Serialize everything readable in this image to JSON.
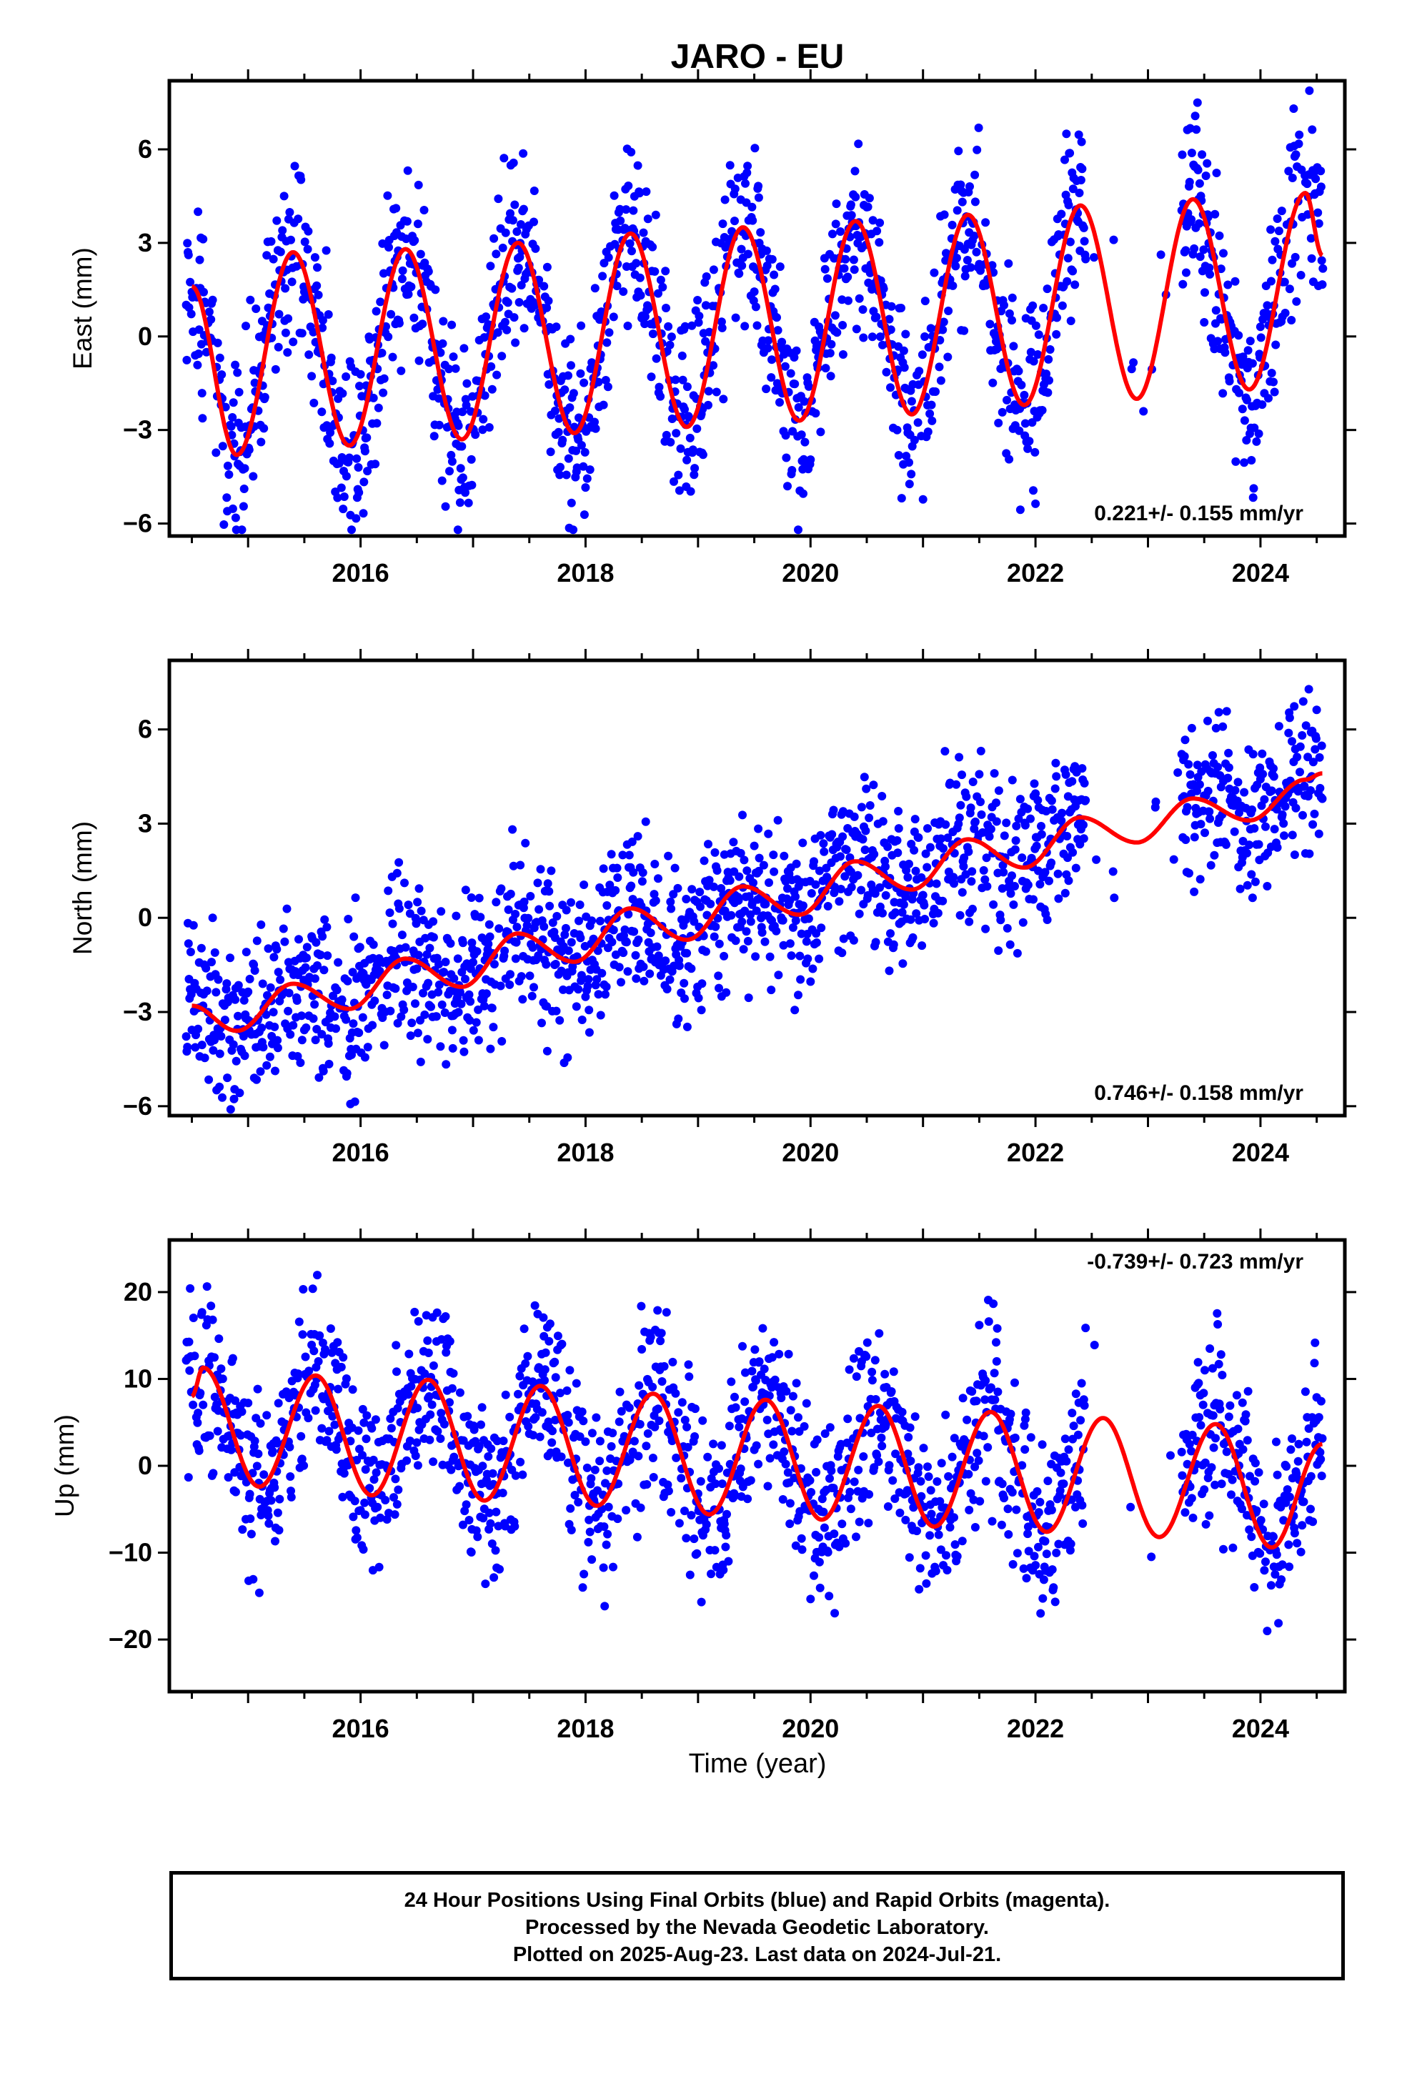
{
  "title": "JARO - EU",
  "xlabel": "Time (year)",
  "colors": {
    "points": "#0000ff",
    "fit": "#ff0000",
    "frame": "#000000"
  },
  "footer": {
    "line1": "24 Hour Positions Using Final Orbits (blue) and Rapid Orbits (magenta).",
    "line2": "Processed by the Nevada Geodetic Laboratory.",
    "line3": "Plotted on 2025-Aug-23. Last data on 2024-Jul-21."
  },
  "chart_data": [
    {
      "type": "scatter",
      "ylabel": "East (mm)",
      "rate": "0.221+/- 0.155 mm/yr",
      "rate_position": "bottom-right",
      "xlim": [
        2014.3,
        2024.75
      ],
      "ylim": [
        -6.4,
        8.2
      ],
      "yticks": [
        -6,
        -3,
        0,
        3,
        6
      ],
      "xticks": [
        2016,
        2018,
        2020,
        2022,
        2024
      ],
      "grid": false,
      "fit": {
        "x": [
          2014.5,
          2014.9,
          2015.4,
          2015.9,
          2016.4,
          2016.9,
          2017.4,
          2017.9,
          2018.4,
          2018.9,
          2019.4,
          2019.9,
          2020.4,
          2020.9,
          2021.4,
          2021.9,
          2022.4,
          2022.9,
          2023.4,
          2023.9,
          2024.4,
          2024.55
        ],
        "y": [
          1.6,
          -3.8,
          2.7,
          -3.5,
          2.8,
          -3.3,
          3.0,
          -3.1,
          3.3,
          -2.9,
          3.5,
          -2.7,
          3.7,
          -2.5,
          3.9,
          -2.2,
          4.2,
          -2.0,
          4.4,
          -1.7,
          4.6,
          2.6
        ]
      },
      "points_summary": "daily positions scattered about +/-1.5 mm around the fit, gap 2022.45-2023.3"
    },
    {
      "type": "scatter",
      "ylabel": "North (mm)",
      "rate": "0.746+/- 0.158 mm/yr",
      "rate_position": "bottom-right",
      "xlim": [
        2014.3,
        2024.75
      ],
      "ylim": [
        -6.3,
        8.2
      ],
      "yticks": [
        -6,
        -3,
        0,
        3,
        6
      ],
      "xticks": [
        2016,
        2018,
        2020,
        2022,
        2024
      ],
      "grid": false,
      "fit": {
        "x": [
          2014.5,
          2014.9,
          2015.4,
          2015.9,
          2016.4,
          2016.9,
          2017.4,
          2017.9,
          2018.4,
          2018.9,
          2019.4,
          2019.9,
          2020.4,
          2020.9,
          2021.4,
          2021.9,
          2022.4,
          2022.9,
          2023.4,
          2023.9,
          2024.4,
          2024.55
        ],
        "y": [
          -2.8,
          -3.6,
          -2.1,
          -2.9,
          -1.3,
          -2.2,
          -0.5,
          -1.4,
          0.3,
          -0.7,
          1.0,
          0.1,
          1.8,
          0.9,
          2.5,
          1.6,
          3.2,
          2.4,
          3.8,
          3.1,
          4.4,
          4.6
        ]
      },
      "points_summary": "daily positions scattered about +/-1.2 mm around the fit, gap 2022.45-2023.3"
    },
    {
      "type": "scatter",
      "ylabel": "Up (mm)",
      "rate": "-0.739+/- 0.723 mm/yr",
      "rate_position": "top-right",
      "xlim": [
        2014.3,
        2024.75
      ],
      "ylim": [
        -26,
        26
      ],
      "yticks": [
        -20,
        -10,
        0,
        10,
        20
      ],
      "xticks": [
        2016,
        2018,
        2020,
        2022,
        2024
      ],
      "grid": false,
      "fit": {
        "x": [
          2014.5,
          2014.6,
          2015.1,
          2015.6,
          2016.1,
          2016.6,
          2017.1,
          2017.6,
          2018.1,
          2018.6,
          2019.1,
          2019.6,
          2020.1,
          2020.6,
          2021.1,
          2021.6,
          2022.1,
          2022.6,
          2023.1,
          2023.6,
          2024.1,
          2024.55
        ],
        "y": [
          8.0,
          11.3,
          -2.4,
          10.4,
          -3.4,
          9.9,
          -4.0,
          9.2,
          -4.6,
          8.3,
          -5.6,
          7.6,
          -6.2,
          6.9,
          -7.0,
          6.2,
          -7.6,
          5.5,
          -8.2,
          4.8,
          -9.4,
          2.5
        ]
      },
      "points_summary": "daily positions scattered about +/-5 mm around the fit, gap 2022.45-2023.3"
    }
  ]
}
